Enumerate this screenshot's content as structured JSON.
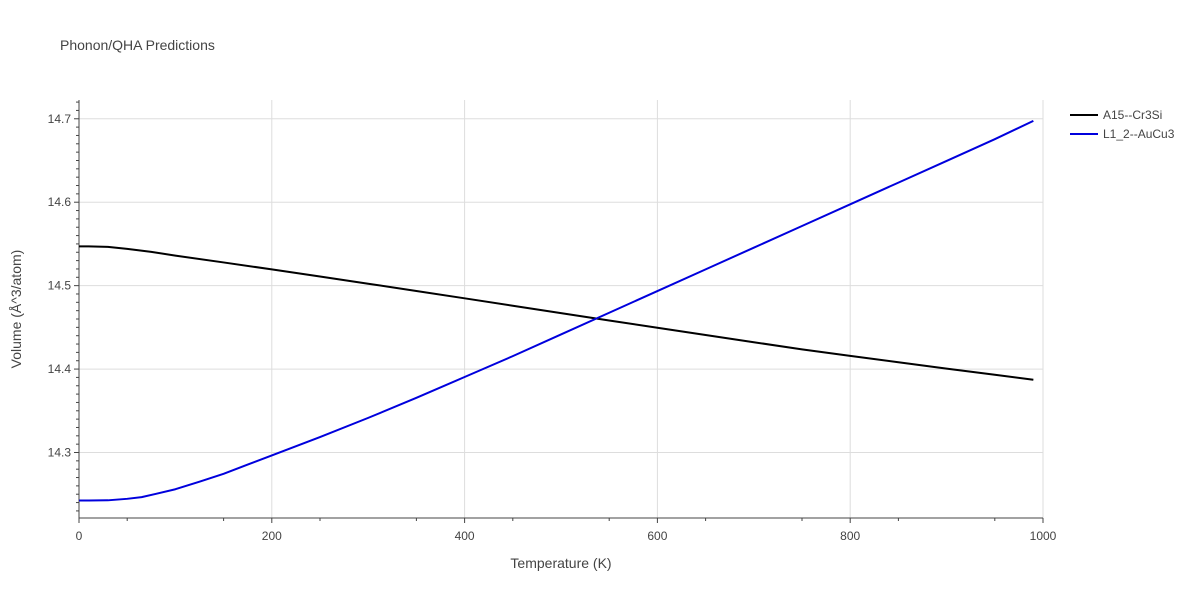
{
  "chart_data": {
    "type": "line",
    "title": "Phonon/QHA Predictions",
    "xlabel": "Temperature (K)",
    "ylabel": "Volume (Å^3/atom)",
    "xlim": [
      0,
      1000
    ],
    "ylim": [
      14.2215,
      14.7225
    ],
    "x_ticks": [
      0,
      200,
      400,
      600,
      800,
      1000
    ],
    "y_ticks": [
      14.3,
      14.4,
      14.5,
      14.6,
      14.7
    ],
    "x_tick_labels": [
      "0",
      "200",
      "400",
      "600",
      "800",
      "1000"
    ],
    "y_tick_labels": [
      "14.3",
      "14.4",
      "14.5",
      "14.6",
      "14.7"
    ],
    "grid": true,
    "legend_position": "top-right",
    "series": [
      {
        "name": "A15--Cr3Si",
        "color": "#000000",
        "x": [
          0,
          10,
          30,
          50,
          75,
          100,
          150,
          200,
          250,
          300,
          350,
          400,
          450,
          500,
          550,
          600,
          650,
          700,
          750,
          800,
          850,
          900,
          950,
          990
        ],
        "y": [
          14.547,
          14.547,
          14.5465,
          14.544,
          14.5405,
          14.536,
          14.5278,
          14.5195,
          14.511,
          14.5023,
          14.4936,
          14.4848,
          14.4759,
          14.467,
          14.4582,
          14.4495,
          14.4408,
          14.4322,
          14.4236,
          14.4158,
          14.4082,
          14.4005,
          14.3932,
          14.3872
        ]
      },
      {
        "name": "L1_2--AuCu3",
        "color": "#0000dd",
        "x": [
          0,
          10,
          30,
          50,
          65,
          80,
          100,
          125,
          150,
          175,
          200,
          250,
          300,
          350,
          400,
          450,
          500,
          550,
          600,
          650,
          700,
          750,
          800,
          850,
          900,
          950,
          990
        ],
        "y": [
          14.2425,
          14.2425,
          14.2427,
          14.2445,
          14.2465,
          14.2505,
          14.256,
          14.265,
          14.2745,
          14.2855,
          14.2965,
          14.3185,
          14.3415,
          14.3655,
          14.3905,
          14.4155,
          14.4415,
          14.4675,
          14.4935,
          14.5195,
          14.5455,
          14.5715,
          14.5975,
          14.6235,
          14.6495,
          14.6755,
          14.6975
        ]
      }
    ]
  }
}
